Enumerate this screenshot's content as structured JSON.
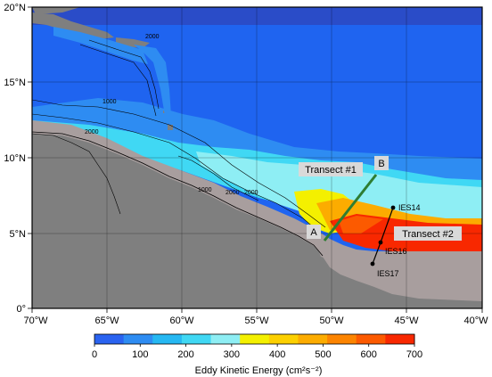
{
  "map": {
    "lat_labels": [
      "20°N",
      "15°N",
      "10°N",
      "5°N",
      "0°"
    ],
    "lon_labels": [
      "70°W",
      "65°W",
      "60°W",
      "55°W",
      "50°W",
      "45°W",
      "40°W"
    ],
    "contour_labels": [
      "2000",
      "2000",
      "1000",
      "2000",
      "1000",
      "2000"
    ],
    "transects": [
      {
        "label": "Transect #1",
        "color": "#2e7d32"
      },
      {
        "label": "Transect #2",
        "color": "#000000"
      }
    ],
    "endpoints": [
      "A",
      "B"
    ],
    "stations": [
      "IES14",
      "IES16",
      "IES17"
    ],
    "colors": {
      "land": "#7f7f7f",
      "shelf": "#a89e9e",
      "ocean": "#1f64f0"
    }
  },
  "colorbar": {
    "title": "Eddy Kinetic Energy (cm²s⁻²)",
    "tick_labels": [
      "0",
      "100",
      "200",
      "300",
      "400",
      "500",
      "600",
      "700"
    ],
    "colors": [
      "#2a63f0",
      "#2e8cf2",
      "#26b8f2",
      "#40d8f4",
      "#8eeef4",
      "#f4f000",
      "#fcd000",
      "#fcac00",
      "#fc8400",
      "#fc5a00",
      "#f82800"
    ]
  }
}
